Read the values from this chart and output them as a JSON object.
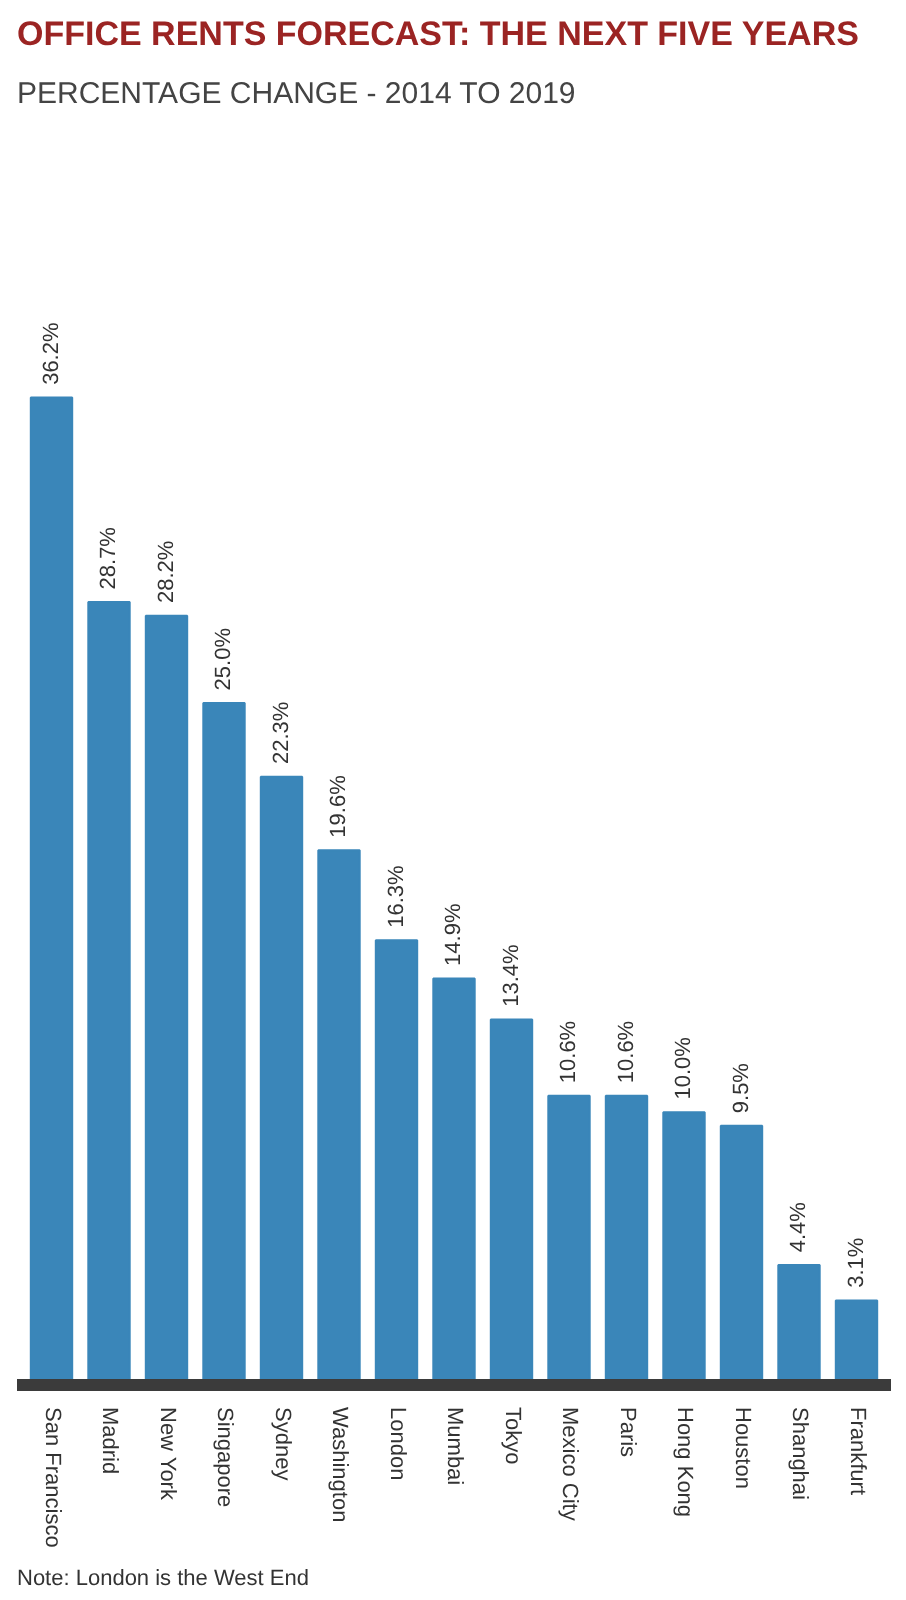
{
  "chart_data": {
    "type": "bar",
    "title": "OFFICE RENTS FORECAST: THE NEXT FIVE YEARS",
    "subtitle": "PERCENTAGE CHANGE - 2014 TO 2019",
    "categories": [
      "San Francisco",
      "Madrid",
      "New York",
      "Singapore",
      "Sydney",
      "Washington",
      "London",
      "Mumbai",
      "Tokyo",
      "Mexico City",
      "Paris",
      "Hong Kong",
      "Houston",
      "Shanghai",
      "Frankfurt"
    ],
    "values": [
      36.2,
      28.7,
      28.2,
      25.0,
      22.3,
      19.6,
      16.3,
      14.9,
      13.4,
      10.6,
      10.6,
      10.0,
      9.5,
      4.4,
      3.1
    ],
    "value_labels": [
      "36.2%",
      "28.7%",
      "28.2%",
      "25.0%",
      "22.3%",
      "19.6%",
      "16.3%",
      "14.9%",
      "13.4%",
      "10.6%",
      "10.6%",
      "10.0%",
      "9.5%",
      "4.4%",
      "3.1%"
    ],
    "color": "#3a86b9",
    "annotations": [
      "Note: London is the West End"
    ]
  }
}
